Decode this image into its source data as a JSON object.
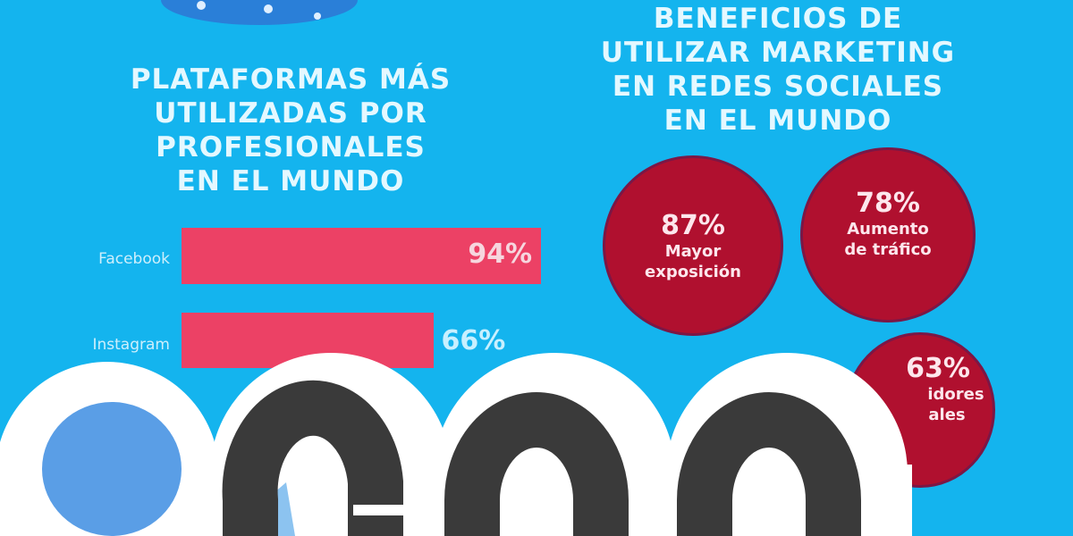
{
  "left_section": {
    "title_lines": [
      "PLATAFORMAS MÁS",
      "UTILIZADAS POR",
      "PROFESIONALES",
      "EN EL MUNDO"
    ],
    "bars": [
      {
        "label": "Facebook",
        "value": 94,
        "value_label": "94%"
      },
      {
        "label": "Instagram",
        "value": 66,
        "value_label": "66%"
      }
    ]
  },
  "right_section": {
    "title_lines": [
      "BENEFICIOS DE",
      "UTILIZAR MARKETING",
      "EN REDES SOCIALES",
      "EN EL MUNDO"
    ],
    "circles": [
      {
        "value": "87%",
        "lines": [
          "Mayor",
          "exposición"
        ]
      },
      {
        "value": "78%",
        "lines": [
          "Aumento",
          "de tráfico"
        ]
      },
      {
        "value": "63%",
        "lines": [
          "idores",
          "ales"
        ]
      }
    ]
  },
  "colors": {
    "background": "#14b4ee",
    "bar": "#ec4165",
    "circle": "#b0102f",
    "logo_letters": "#3a3a3a",
    "logo_dot": "#5a9ee6"
  },
  "logo": {
    "text": "coo"
  }
}
